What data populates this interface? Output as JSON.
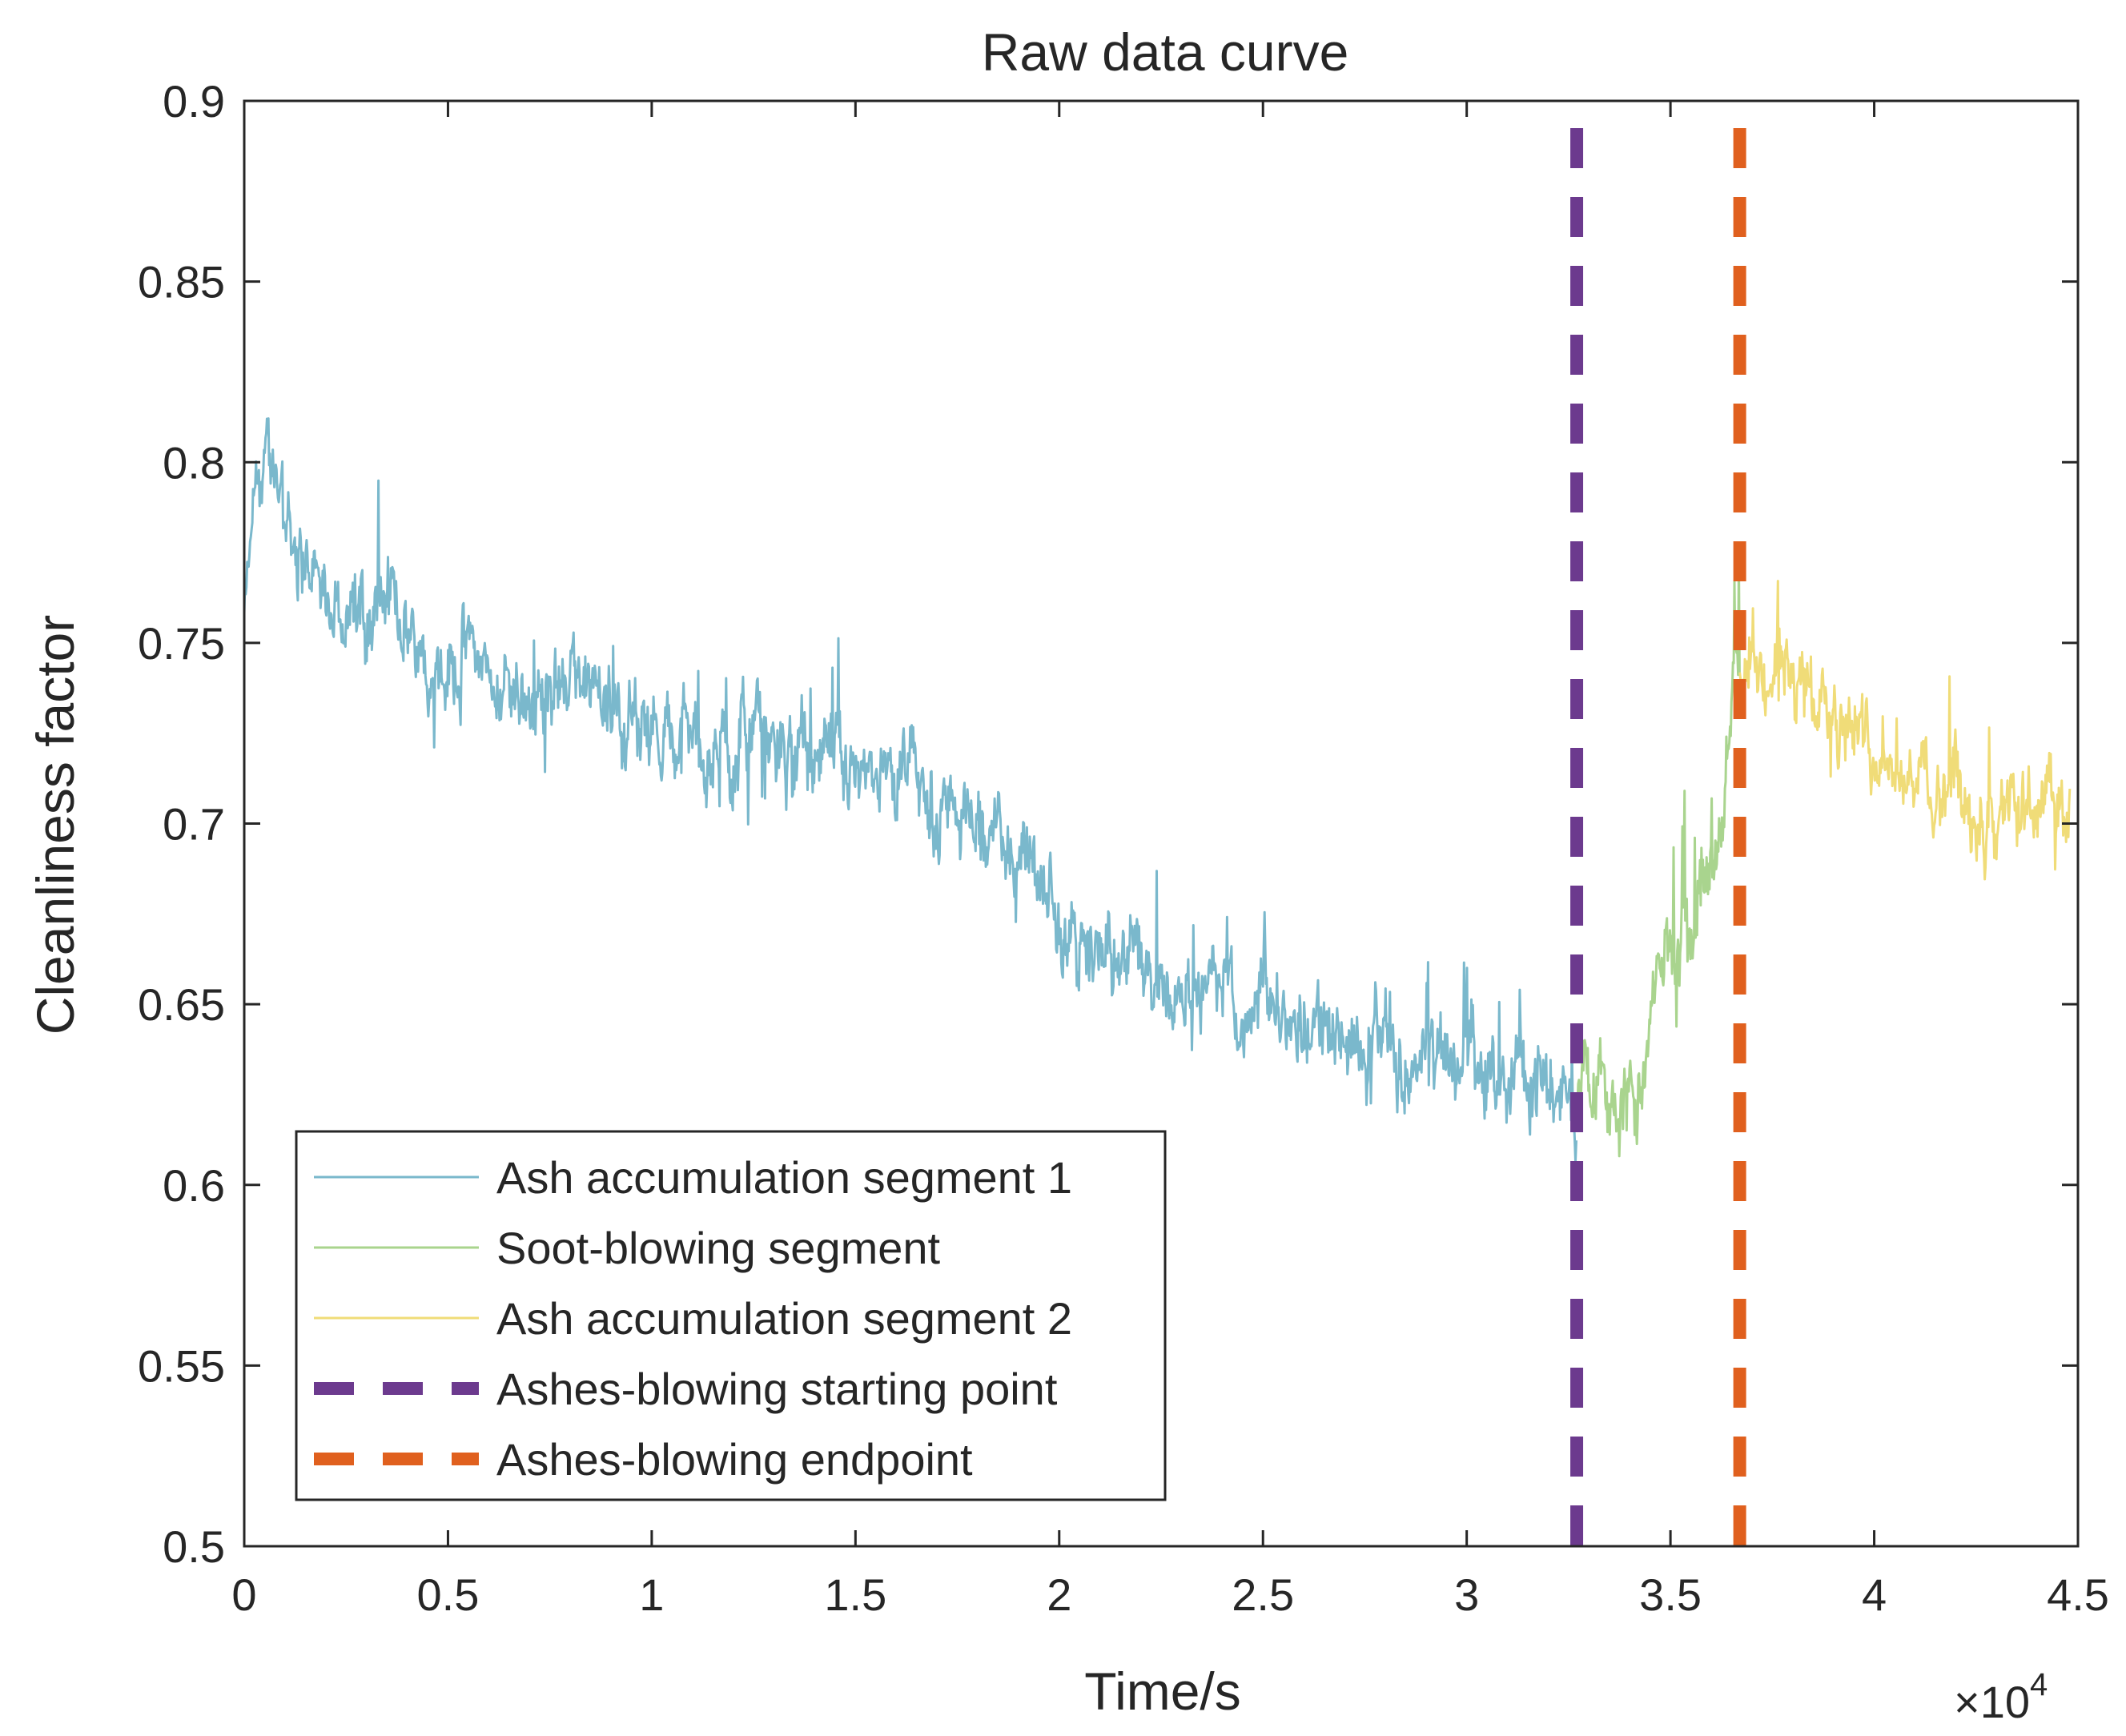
{
  "chart_data": {
    "type": "line",
    "title": "Raw data curve",
    "xlabel": "Time/s",
    "ylabel": "Cleanliness factor",
    "x_exponent_label": "×10",
    "x_exponent_power": "4",
    "xlim": [
      0,
      45000
    ],
    "ylim": [
      0.5,
      0.9
    ],
    "x_ticks": [
      0,
      5000,
      10000,
      15000,
      20000,
      25000,
      30000,
      35000,
      40000,
      45000
    ],
    "x_tick_labels": [
      "0",
      "0.5",
      "1",
      "1.5",
      "2",
      "2.5",
      "3",
      "3.5",
      "4",
      "4.5"
    ],
    "y_ticks": [
      0.5,
      0.55,
      0.6,
      0.65,
      0.7,
      0.75,
      0.8,
      0.85,
      0.9
    ],
    "y_tick_labels": [
      "0.5",
      "0.55",
      "0.6",
      "0.65",
      "0.7",
      "0.75",
      "0.8",
      "0.85",
      "0.9"
    ],
    "grid": false,
    "legend_position": "bottom-left",
    "series": [
      {
        "name": "Ash accumulation segment 1",
        "color": "#7ab8cc",
        "style": "solid",
        "x": [
          0,
          300,
          600,
          900,
          1200,
          1500,
          2000,
          2500,
          3000,
          3500,
          4000,
          4500,
          5000,
          5500,
          6000,
          6500,
          7000,
          7500,
          8000,
          8500,
          9000,
          9500,
          10000,
          10500,
          11000,
          11500,
          12000,
          12500,
          13000,
          13500,
          14000,
          14500,
          15000,
          15500,
          16000,
          16500,
          17000,
          17500,
          18000,
          18500,
          19000,
          19500,
          20000,
          20500,
          21000,
          21500,
          22000,
          22500,
          23000,
          23500,
          24000,
          24500,
          25000,
          25500,
          26000,
          26500,
          27000,
          27500,
          28000,
          28500,
          29000,
          29500,
          30000,
          30500,
          31000,
          31500,
          32000,
          32500,
          32700
        ],
        "y": [
          0.755,
          0.79,
          0.8,
          0.795,
          0.78,
          0.77,
          0.765,
          0.76,
          0.755,
          0.76,
          0.755,
          0.75,
          0.745,
          0.75,
          0.74,
          0.74,
          0.735,
          0.735,
          0.74,
          0.73,
          0.735,
          0.73,
          0.73,
          0.725,
          0.725,
          0.72,
          0.72,
          0.725,
          0.72,
          0.715,
          0.72,
          0.715,
          0.72,
          0.715,
          0.71,
          0.71,
          0.7,
          0.705,
          0.695,
          0.7,
          0.69,
          0.685,
          0.675,
          0.665,
          0.665,
          0.66,
          0.665,
          0.66,
          0.655,
          0.655,
          0.655,
          0.65,
          0.65,
          0.645,
          0.645,
          0.645,
          0.64,
          0.64,
          0.64,
          0.635,
          0.635,
          0.635,
          0.635,
          0.63,
          0.63,
          0.63,
          0.625,
          0.625,
          0.62
        ]
      },
      {
        "name": "Soot-blowing segment",
        "color": "#a9d48e",
        "style": "solid",
        "x": [
          32700,
          32900,
          33200,
          33500,
          33800,
          34100,
          34300,
          34600,
          34900,
          35200,
          35500,
          35800,
          36100,
          36300,
          36500,
          36700
        ],
        "y": [
          0.62,
          0.635,
          0.63,
          0.625,
          0.625,
          0.625,
          0.62,
          0.655,
          0.665,
          0.67,
          0.68,
          0.69,
          0.7,
          0.715,
          0.735,
          0.745
        ]
      },
      {
        "name": "Ash accumulation segment 2",
        "color": "#f0dc78",
        "style": "solid",
        "x": [
          36700,
          37000,
          37500,
          38000,
          38500,
          39000,
          39500,
          40000,
          40500,
          41000,
          41500,
          42000,
          42500,
          43000,
          43500,
          44000,
          44500,
          44800
        ],
        "y": [
          0.745,
          0.74,
          0.74,
          0.735,
          0.735,
          0.735,
          0.73,
          0.725,
          0.72,
          0.715,
          0.71,
          0.71,
          0.705,
          0.7,
          0.7,
          0.7,
          0.705,
          0.705
        ]
      }
    ],
    "vertical_lines": [
      {
        "name": "Ashes-blowing starting point",
        "x": 32700,
        "color": "#6c3a8e",
        "style": "dashed"
      },
      {
        "name": "Ashes-blowing endpoint",
        "x": 36700,
        "color": "#e0601e",
        "style": "dashed"
      }
    ]
  }
}
